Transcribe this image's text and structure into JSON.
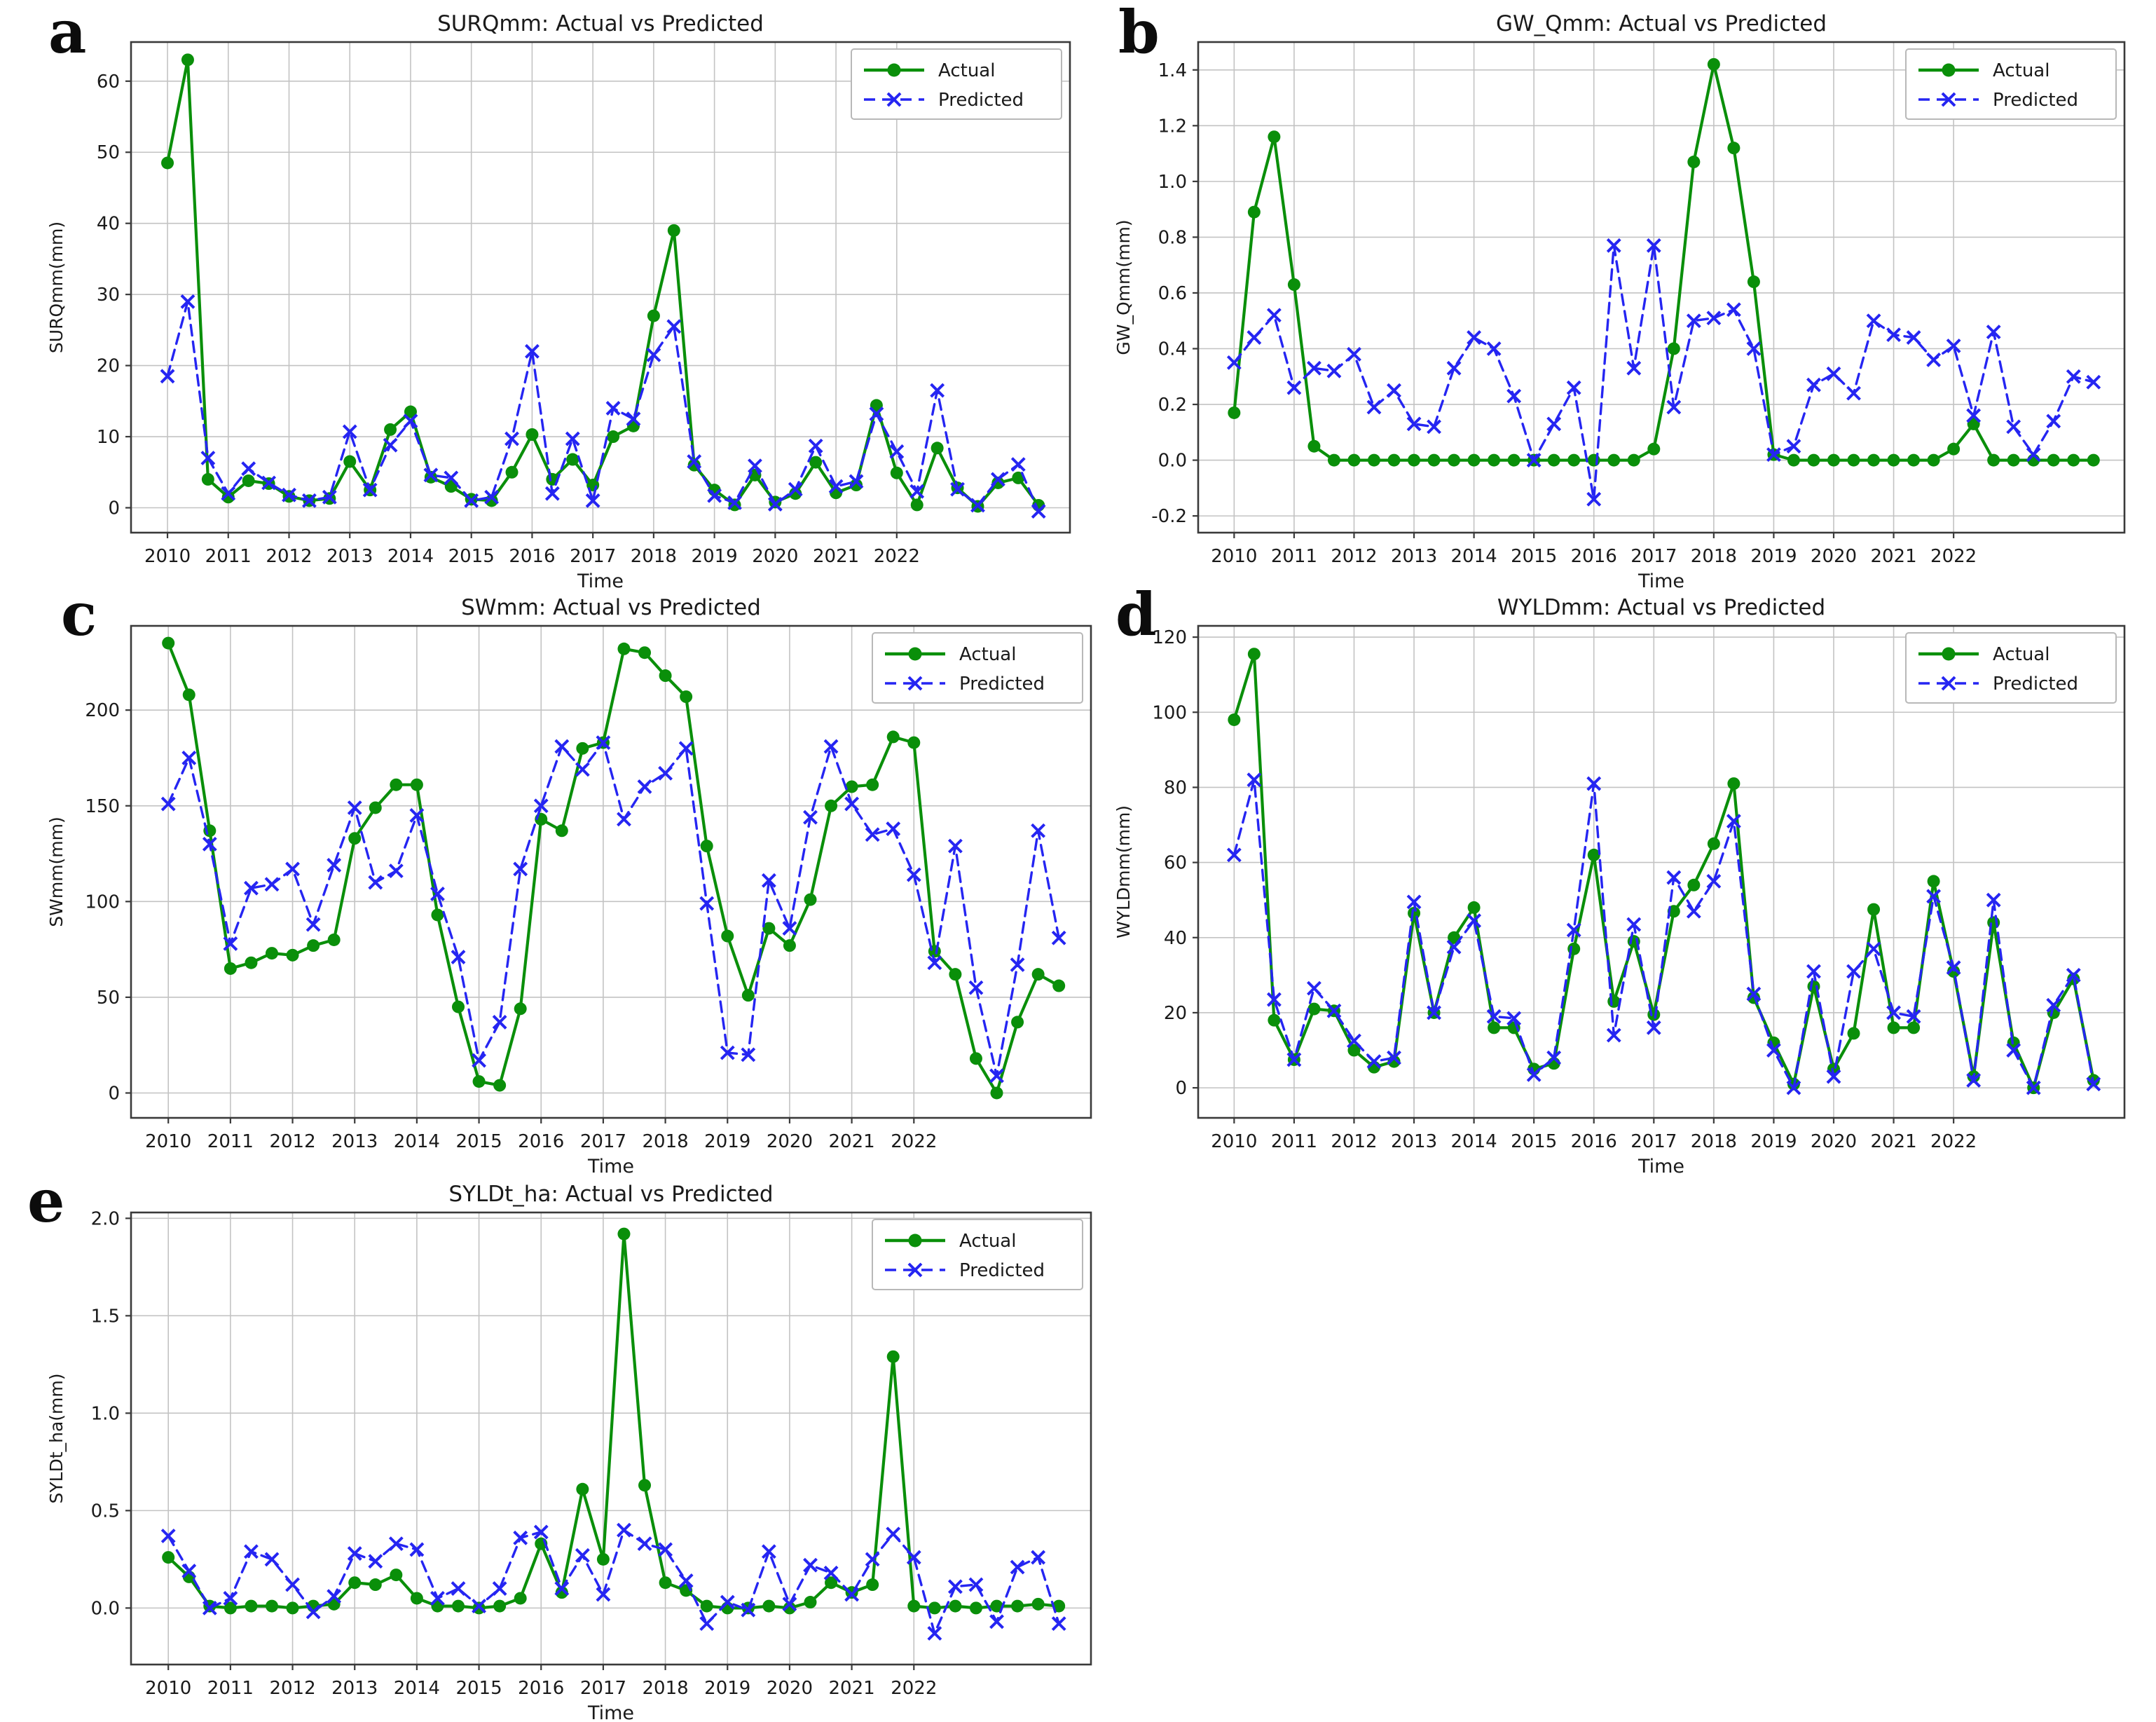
{
  "legend": {
    "actual_label": "Actual",
    "predicted_label": "Predicted"
  },
  "x_axis": {
    "label": "Time",
    "tick_labels": [
      "2010",
      "2011",
      "2012",
      "2013",
      "2014",
      "2015",
      "2016",
      "2017",
      "2018",
      "2019",
      "2020",
      "2021",
      "2022"
    ],
    "start": 2010,
    "step_years": 0.3333333,
    "xlim": [
      2009.4,
      2024.85
    ]
  },
  "styles": {
    "actual_color": "#0a8f0a",
    "predicted_color": "#2525f2",
    "grid_color": "#c3c3c3",
    "frame_color": "#3a3a3a",
    "legend_border": "#b8b8b8",
    "text_color": "#1a1a1a"
  },
  "chart_data": [
    {
      "type": "line",
      "panel_letter": "a",
      "title": "SURQmm: Actual vs Predicted",
      "xlabel": "Time",
      "ylabel": "SURQmm(mm)",
      "ylim": [
        -3.5,
        65.5
      ],
      "yticks": [
        0,
        10,
        20,
        30,
        40,
        50,
        60
      ],
      "ytick_decimals": 0,
      "grid": true,
      "legend_position": "upper right",
      "series": [
        {
          "name": "Actual",
          "color": "#0a8f0a",
          "line": "solid",
          "marker": "circle",
          "values": [
            48.5,
            63,
            4,
            1.5,
            3.8,
            3.4,
            1.6,
            1.0,
            1.3,
            6.5,
            2.5,
            11,
            13.5,
            4.3,
            3.0,
            1.2,
            1.0,
            5.0,
            10.3,
            4.0,
            6.8,
            3.2,
            10,
            11.5,
            27,
            39,
            6,
            2.5,
            0.4,
            4.6,
            0.8,
            2.0,
            6.4,
            2.1,
            3.2,
            14.4,
            4.9,
            0.4,
            8.4,
            2.8,
            0.2,
            3.5,
            4.2,
            0.35
          ]
        },
        {
          "name": "Predicted",
          "color": "#2525f2",
          "line": "dashed",
          "marker": "x",
          "values": [
            18.5,
            29,
            7,
            2.0,
            5.5,
            3.5,
            1.8,
            1.0,
            1.5,
            10.7,
            2.5,
            8.8,
            12.2,
            4.6,
            4.2,
            1.0,
            1.5,
            9.7,
            22,
            2.0,
            9.7,
            1.0,
            14,
            12.5,
            21.5,
            25.5,
            6.5,
            1.7,
            0.7,
            5.9,
            0.5,
            2.6,
            8.7,
            3.0,
            3.7,
            13.2,
            7.9,
            2.3,
            16.5,
            2.6,
            0.35,
            4.0,
            6.1,
            -0.5
          ]
        }
      ]
    },
    {
      "type": "line",
      "panel_letter": "b",
      "title": "GW_Qmm: Actual vs Predicted",
      "xlabel": "Time",
      "ylabel": "GW_Qmm(mm)",
      "ylim": [
        -0.26,
        1.5
      ],
      "yticks": [
        -0.2,
        0.0,
        0.2,
        0.4,
        0.6,
        0.8,
        1.0,
        1.2,
        1.4
      ],
      "ytick_decimals": 1,
      "grid": true,
      "legend_position": "upper right",
      "series": [
        {
          "name": "Actual",
          "color": "#0a8f0a",
          "line": "solid",
          "marker": "circle",
          "values": [
            0.17,
            0.89,
            1.16,
            0.63,
            0.05,
            0,
            0,
            0,
            0,
            0,
            0,
            0,
            0,
            0,
            0,
            0,
            0,
            0,
            0,
            0,
            0,
            0.04,
            0.4,
            1.07,
            1.42,
            1.12,
            0.64,
            0.02,
            0,
            0,
            0,
            0,
            0,
            0,
            0,
            0,
            0.04,
            0.13,
            0,
            0,
            0,
            0,
            0,
            0
          ]
        },
        {
          "name": "Predicted",
          "color": "#2525f2",
          "line": "dashed",
          "marker": "x",
          "values": [
            0.35,
            0.44,
            0.52,
            0.26,
            0.33,
            0.32,
            0.38,
            0.19,
            0.25,
            0.13,
            0.12,
            0.33,
            0.44,
            0.4,
            0.23,
            0.0,
            0.13,
            0.26,
            -0.14,
            0.77,
            0.33,
            0.77,
            0.19,
            0.5,
            0.51,
            0.54,
            0.4,
            0.02,
            0.05,
            0.27,
            0.31,
            0.24,
            0.5,
            0.45,
            0.44,
            0.36,
            0.41,
            0.16,
            0.46,
            0.12,
            0.02,
            0.14,
            0.3,
            0.28
          ]
        }
      ]
    },
    {
      "type": "line",
      "panel_letter": "c",
      "title": "SWmm: Actual vs Predicted",
      "xlabel": "Time",
      "ylabel": "SWmm(mm)",
      "ylim": [
        -13,
        244
      ],
      "yticks": [
        0,
        50,
        100,
        150,
        200
      ],
      "ytick_decimals": 0,
      "grid": true,
      "legend_position": "upper right",
      "series": [
        {
          "name": "Actual",
          "color": "#0a8f0a",
          "line": "solid",
          "marker": "circle",
          "values": [
            235,
            208,
            137,
            65,
            68,
            73,
            72,
            77,
            80,
            133,
            149,
            161,
            161,
            93,
            45,
            6,
            4,
            44,
            143,
            137,
            180,
            183,
            232,
            230,
            218,
            207,
            129,
            82,
            51,
            86,
            77,
            101,
            150,
            160,
            161,
            186,
            183,
            74,
            62,
            18,
            0,
            37,
            62,
            56
          ]
        },
        {
          "name": "Predicted",
          "color": "#2525f2",
          "line": "dashed",
          "marker": "x",
          "values": [
            151,
            175,
            130,
            78,
            107,
            109,
            117,
            88,
            119,
            149,
            110,
            116,
            145,
            104,
            71,
            17,
            37,
            117,
            150,
            181,
            169,
            183,
            143,
            160,
            167,
            180,
            99,
            21,
            20,
            111,
            86,
            144,
            181,
            151,
            135,
            138,
            114,
            68,
            129,
            55,
            9,
            67,
            137,
            81
          ]
        }
      ]
    },
    {
      "type": "line",
      "panel_letter": "d",
      "title": "WYLDmm: Actual vs Predicted",
      "xlabel": "Time",
      "ylabel": "WYLDmm(mm)",
      "ylim": [
        -8,
        123
      ],
      "yticks": [
        0,
        20,
        40,
        60,
        80,
        100,
        120
      ],
      "ytick_decimals": 0,
      "grid": true,
      "legend_position": "upper right",
      "series": [
        {
          "name": "Actual",
          "color": "#0a8f0a",
          "line": "solid",
          "marker": "circle",
          "values": [
            98,
            115.5,
            18,
            7.5,
            21,
            20.5,
            10,
            5.5,
            7,
            46.5,
            20,
            40,
            48,
            16,
            16,
            5,
            6.5,
            37,
            62,
            23,
            39,
            19.5,
            47,
            54,
            65,
            81,
            24,
            12,
            1,
            27,
            5,
            14.5,
            47.5,
            16,
            16,
            55,
            31,
            3,
            44,
            12,
            0,
            20,
            29,
            2
          ]
        },
        {
          "name": "Predicted",
          "color": "#2525f2",
          "line": "dashed",
          "marker": "x",
          "values": [
            62,
            82,
            23.5,
            7.5,
            26.5,
            20.5,
            12.5,
            7,
            8,
            49.5,
            20,
            37.5,
            44.5,
            19,
            18.5,
            3.5,
            8,
            42,
            81,
            14,
            43.5,
            16,
            56,
            47,
            55,
            71,
            25,
            10,
            0,
            31,
            3,
            31,
            37,
            20,
            19,
            51,
            32,
            2,
            50,
            10,
            0,
            22,
            30,
            1
          ]
        }
      ]
    },
    {
      "type": "line",
      "panel_letter": "e",
      "title": "SYLDt_ha: Actual vs Predicted",
      "xlabel": "Time",
      "ylabel": "SYLDt_ha(mm)",
      "ylim": [
        -0.29,
        2.03
      ],
      "yticks": [
        0.0,
        0.5,
        1.0,
        1.5,
        2.0
      ],
      "ytick_decimals": 1,
      "grid": true,
      "legend_position": "upper right",
      "series": [
        {
          "name": "Actual",
          "color": "#0a8f0a",
          "line": "solid",
          "marker": "circle",
          "values": [
            0.26,
            0.16,
            0.01,
            0,
            0.01,
            0.01,
            0,
            0.01,
            0.02,
            0.13,
            0.12,
            0.17,
            0.05,
            0.01,
            0.01,
            0,
            0.01,
            0.05,
            0.33,
            0.08,
            0.61,
            0.25,
            1.92,
            0.63,
            0.13,
            0.09,
            0.01,
            0,
            0,
            0.01,
            0,
            0.03,
            0.13,
            0.08,
            0.12,
            1.29,
            0.01,
            0,
            0.01,
            0,
            0.01,
            0.01,
            0.02,
            0.01
          ]
        },
        {
          "name": "Predicted",
          "color": "#2525f2",
          "line": "dashed",
          "marker": "x",
          "values": [
            0.37,
            0.19,
            0,
            0.05,
            0.29,
            0.25,
            0.12,
            -0.02,
            0.06,
            0.28,
            0.24,
            0.33,
            0.3,
            0.05,
            0.1,
            0.01,
            0.1,
            0.36,
            0.39,
            0.1,
            0.27,
            0.07,
            0.4,
            0.33,
            0.3,
            0.14,
            -0.08,
            0.03,
            -0.01,
            0.29,
            0.02,
            0.22,
            0.18,
            0.07,
            0.25,
            0.38,
            0.26,
            -0.13,
            0.11,
            0.12,
            -0.07,
            0.21,
            0.26,
            -0.08
          ]
        }
      ]
    }
  ]
}
